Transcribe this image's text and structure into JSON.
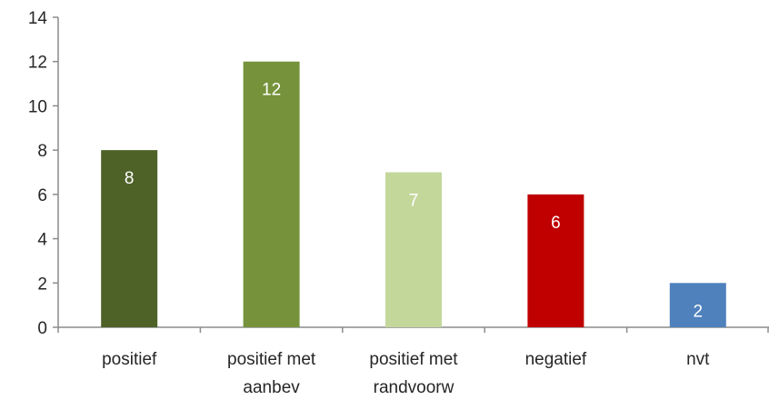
{
  "chart_data": {
    "type": "bar",
    "categories": [
      [
        "positief"
      ],
      [
        "positief met",
        "aanbev"
      ],
      [
        "positief met",
        "randvoorw"
      ],
      [
        "negatief"
      ],
      [
        "nvt"
      ]
    ],
    "values": [
      8,
      12,
      7,
      6,
      2
    ],
    "data_labels": [
      "8",
      "12",
      "7",
      "6",
      "2"
    ],
    "colors": [
      "#4e6228",
      "#76933c",
      "#c4d79b",
      "#c00000",
      "#4f81bd"
    ],
    "title": "",
    "xlabel": "",
    "ylabel": "",
    "ylim": [
      0,
      14
    ],
    "yticks": [
      0,
      2,
      4,
      6,
      8,
      10,
      12,
      14
    ],
    "grid": false,
    "legend": "none"
  }
}
